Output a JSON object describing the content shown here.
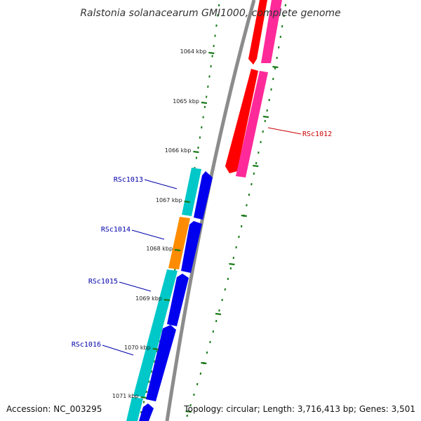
{
  "title": "Ralstonia solanacearum GMI1000, complete genome",
  "footer": {
    "accession": "Accession: NC_003295",
    "summary": "Topology: circular; Length: 3,716,413 bp; Genes: 3,501"
  },
  "colors": {
    "backbone": "#8c8c8c",
    "tick": "#1a7a1a",
    "forward_cds": "#00c8c8",
    "forward_cds_alt": "#ff8c00",
    "forward_cds2": "#0000ee",
    "reverse_cds": "#ff0000",
    "reverse_cds2": "#ff2a9a",
    "label_forward": "#0000aa",
    "label_reverse": "#cc0000"
  },
  "ticks": [
    {
      "label": "1064 kbp"
    },
    {
      "label": "1065 kbp"
    },
    {
      "label": "1066 kbp"
    },
    {
      "label": "1067 kbp"
    },
    {
      "label": "1068 kbp"
    },
    {
      "label": "1069 kbp"
    },
    {
      "label": "1070 kbp"
    },
    {
      "label": "1071 kbp"
    }
  ],
  "genes": [
    {
      "name": "RSc1012",
      "strand": "reverse"
    },
    {
      "name": "RSc1013",
      "strand": "forward"
    },
    {
      "name": "RSc1014",
      "strand": "forward"
    },
    {
      "name": "RSc1015",
      "strand": "forward"
    },
    {
      "name": "RSc1016",
      "strand": "forward"
    }
  ]
}
